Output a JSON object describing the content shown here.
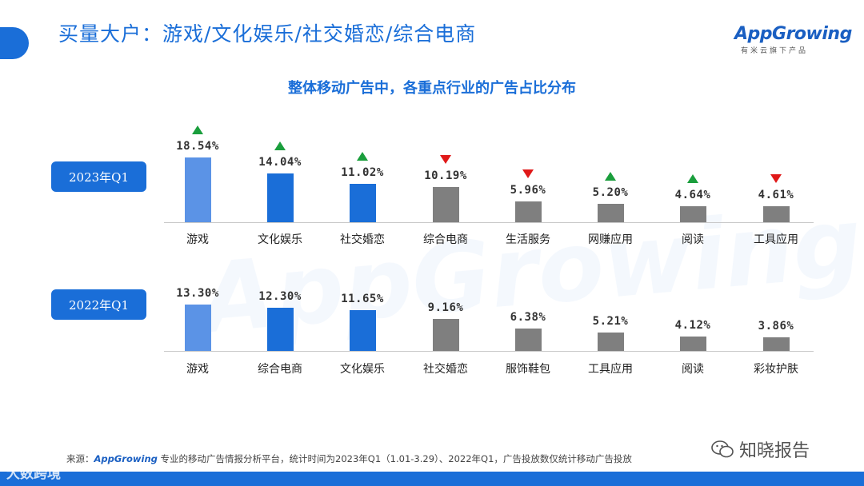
{
  "header": {
    "title": "买量大户：游戏/文化娱乐/社交婚恋/综合电商",
    "logo_text": "AppGrowing",
    "logo_sub": "有米云旗下产品"
  },
  "watermark_text": "AppGrowing",
  "colors": {
    "primary": "#1a6ed8",
    "highlight_bar": "#5b93e6",
    "mid_bar": "#1a6ed8",
    "gray_bar": "#7f7f7f",
    "up": "#1a9e3c",
    "down": "#e01919"
  },
  "chart_data": [
    {
      "type": "bar",
      "title": "整体移动广告中，各重点行业的广告占比分布",
      "period_label": "2023年Q1",
      "categories": [
        "游戏",
        "文化娱乐",
        "社交婚恋",
        "综合电商",
        "生活服务",
        "网赚应用",
        "阅读",
        "工具应用"
      ],
      "values": [
        18.54,
        14.04,
        11.02,
        10.19,
        5.96,
        5.2,
        4.64,
        4.61
      ],
      "value_labels": [
        "18.54%",
        "14.04%",
        "11.02%",
        "10.19%",
        "5.96%",
        "5.20%",
        "4.64%",
        "4.61%"
      ],
      "trend": [
        "up",
        "up",
        "up",
        "down",
        "down",
        "up",
        "up",
        "down"
      ],
      "ylim": [
        0,
        20
      ],
      "grid": false
    },
    {
      "type": "bar",
      "period_label": "2022年Q1",
      "categories": [
        "游戏",
        "综合电商",
        "文化娱乐",
        "社交婚恋",
        "服饰鞋包",
        "工具应用",
        "阅读",
        "彩妆护肤"
      ],
      "values": [
        13.3,
        12.3,
        11.65,
        9.16,
        6.38,
        5.21,
        4.12,
        3.86
      ],
      "value_labels": [
        "13.30%",
        "12.30%",
        "11.65%",
        "9.16%",
        "6.38%",
        "5.21%",
        "4.12%",
        "3.86%"
      ],
      "ylim": [
        0,
        20
      ],
      "grid": false
    }
  ],
  "footer": {
    "source_prefix": "来源：",
    "source_brand": "AppGrowing",
    "source_text": " 专业的移动广告情报分析平台，统计时间为2023年Q1（1.01-3.29）、2022年Q1，广告投放数仅统计移动广告投放"
  },
  "overlays": {
    "right_watermark": "知晓报告",
    "left_watermark": "大数跨境"
  }
}
